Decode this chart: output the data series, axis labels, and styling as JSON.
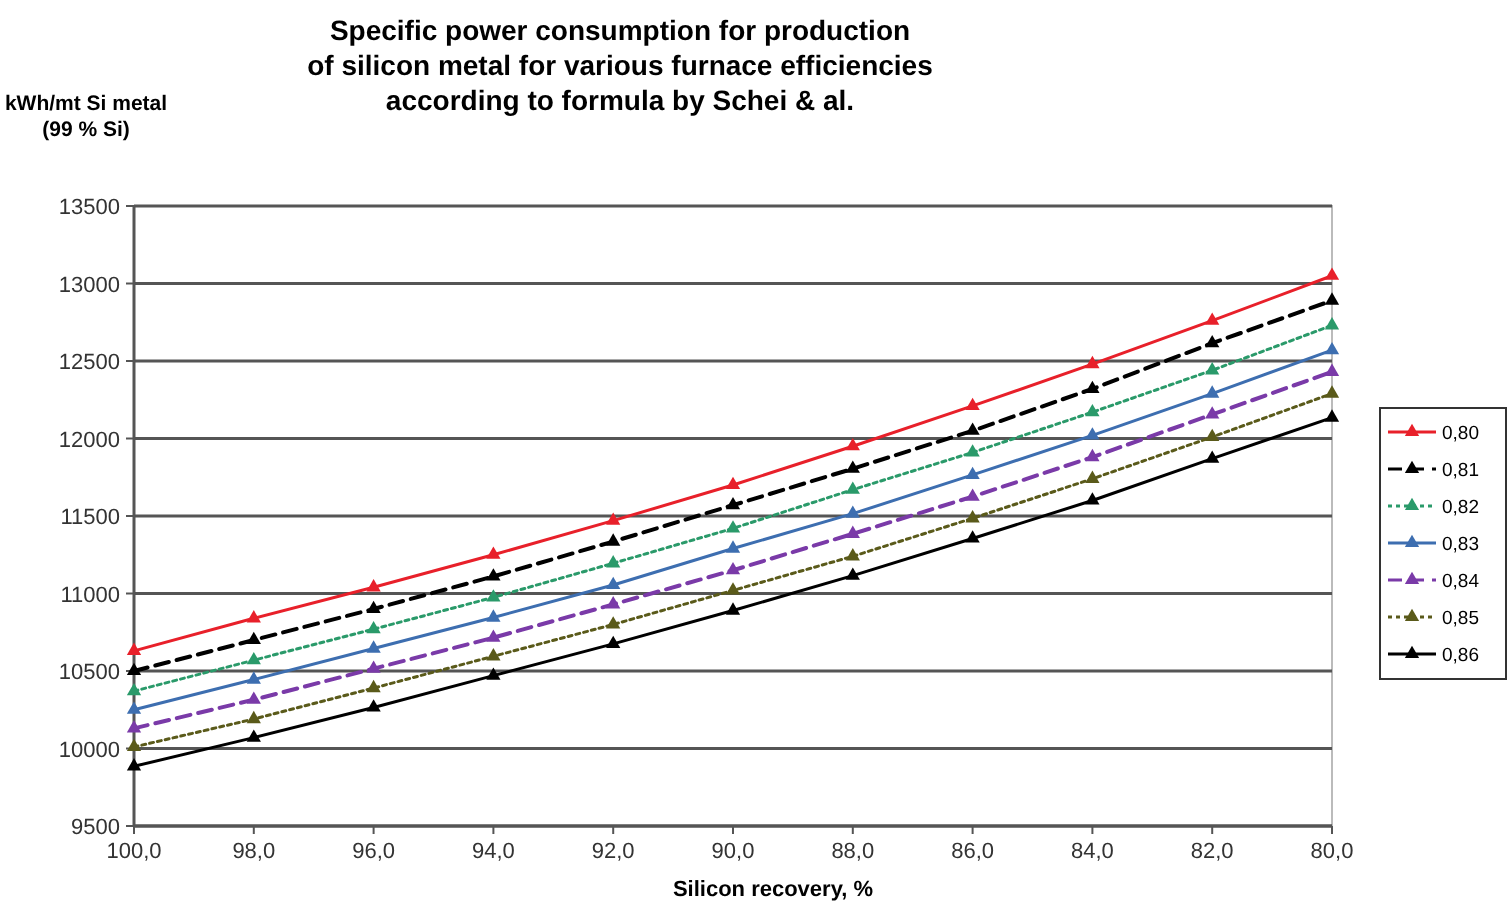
{
  "chart_data": {
    "type": "line",
    "title": "Specific power consumption for production\nof silicon metal for various furnace efficiencies\naccording to formula by Schei & al.",
    "xlabel": "Silicon recovery, %",
    "ylabel": "kWh/mt Si metal\n(99 % Si)",
    "x": [
      100,
      98,
      96,
      94,
      92,
      90,
      88,
      86,
      84,
      82,
      80
    ],
    "xlim": [
      100,
      80
    ],
    "xticks": [
      {
        "value": 100,
        "label": "100,0"
      },
      {
        "value": 98,
        "label": "98,0"
      },
      {
        "value": 96,
        "label": "96,0"
      },
      {
        "value": 94,
        "label": "94,0"
      },
      {
        "value": 92,
        "label": "92,0"
      },
      {
        "value": 90,
        "label": "90,0"
      },
      {
        "value": 88,
        "label": "88,0"
      },
      {
        "value": 86,
        "label": "86,0"
      },
      {
        "value": 84,
        "label": "84,0"
      },
      {
        "value": 82,
        "label": "82,0"
      },
      {
        "value": 80,
        "label": "80,0"
      }
    ],
    "ylim": [
      9500,
      13500
    ],
    "yticks": [
      9500,
      10000,
      10500,
      11000,
      11500,
      12000,
      12500,
      13000,
      13500
    ],
    "grid": "y",
    "legend": "right",
    "marker": "triangle",
    "series": [
      {
        "name": "0,80",
        "color": "#e8202a",
        "line_style": "solid",
        "values": [
          10630,
          10840,
          11040,
          11250,
          11470,
          11700,
          11950,
          12210,
          12480,
          12760,
          13050
        ]
      },
      {
        "name": "0,81",
        "color": "#000000",
        "line_style": "dashed",
        "values": [
          10500,
          10700,
          10900,
          11110,
          11335,
          11570,
          11805,
          12050,
          12320,
          12615,
          12890
        ]
      },
      {
        "name": "0,82",
        "color": "#2a9a6a",
        "line_style": "dotted",
        "values": [
          10370,
          10570,
          10770,
          10975,
          11195,
          11420,
          11670,
          11910,
          12170,
          12440,
          12730
        ]
      },
      {
        "name": "0,83",
        "color": "#3d6eb0",
        "line_style": "solid",
        "values": [
          10250,
          10445,
          10645,
          10845,
          11055,
          11290,
          11515,
          11765,
          12020,
          12290,
          12570
        ]
      },
      {
        "name": "0,84",
        "color": "#7a3aa8",
        "line_style": "dashed",
        "values": [
          10130,
          10315,
          10515,
          10715,
          10930,
          11150,
          11385,
          11625,
          11880,
          12155,
          12430
        ]
      },
      {
        "name": "0,85",
        "color": "#5a5a1a",
        "line_style": "dotted",
        "values": [
          10010,
          10190,
          10390,
          10595,
          10800,
          11020,
          11240,
          11485,
          11740,
          12010,
          12290
        ]
      },
      {
        "name": "0,86",
        "color": "#000000",
        "line_style": "solid",
        "values": [
          9885,
          10070,
          10265,
          10470,
          10675,
          10890,
          11115,
          11355,
          11600,
          11870,
          12135
        ]
      }
    ]
  }
}
